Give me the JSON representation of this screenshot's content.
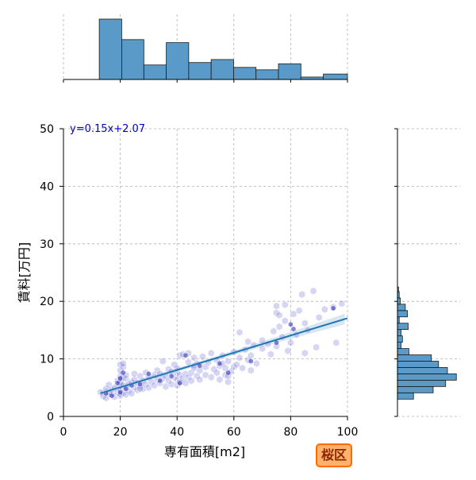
{
  "chart_data": {
    "type": "scatter",
    "xlabel": "専有面積[m2]",
    "ylabel": "賃料[万円]",
    "xlim": [
      0,
      100
    ],
    "ylim": [
      0,
      50
    ],
    "x_ticks": [
      0,
      20,
      40,
      60,
      80,
      100
    ],
    "y_ticks": [
      0,
      10,
      20,
      30,
      40,
      50
    ],
    "grid": true,
    "regression": {
      "label": "y=0.15x+2.07",
      "slope": 0.15,
      "intercept": 2.07,
      "x_range": [
        13,
        100
      ]
    },
    "points": [
      [
        13,
        4.2
      ],
      [
        14,
        3.5
      ],
      [
        15,
        3.2
      ],
      [
        15,
        4.8
      ],
      [
        16,
        4.0
      ],
      [
        16,
        5.5
      ],
      [
        17,
        3.8
      ],
      [
        17,
        4.6
      ],
      [
        18,
        3.4
      ],
      [
        18,
        5.0
      ],
      [
        19,
        4.2
      ],
      [
        19,
        6.2
      ],
      [
        20,
        3.6
      ],
      [
        20,
        4.5
      ],
      [
        20,
        5.2
      ],
      [
        20,
        6.0
      ],
      [
        20,
        7.0
      ],
      [
        20,
        8.0
      ],
      [
        20,
        9.0
      ],
      [
        20,
        3.9
      ],
      [
        20,
        5.8
      ],
      [
        20,
        6.6
      ],
      [
        21,
        4.1
      ],
      [
        21,
        5.4
      ],
      [
        21,
        6.8
      ],
      [
        21,
        8.6
      ],
      [
        21,
        9.2
      ],
      [
        22,
        3.8
      ],
      [
        22,
        5.0
      ],
      [
        22,
        6.5
      ],
      [
        22,
        7.2
      ],
      [
        23,
        4.4
      ],
      [
        23,
        5.6
      ],
      [
        24,
        4.0
      ],
      [
        24,
        6.0
      ],
      [
        25,
        5.0
      ],
      [
        25,
        6.4
      ],
      [
        25,
        7.4
      ],
      [
        26,
        4.6
      ],
      [
        26,
        5.8
      ],
      [
        27,
        5.2
      ],
      [
        27,
        7.0
      ],
      [
        28,
        4.8
      ],
      [
        28,
        6.2
      ],
      [
        29,
        5.6
      ],
      [
        29,
        7.6
      ],
      [
        30,
        5.0
      ],
      [
        30,
        6.8
      ],
      [
        31,
        6.0
      ],
      [
        32,
        5.4
      ],
      [
        32,
        7.2
      ],
      [
        33,
        6.4
      ],
      [
        33,
        8.0
      ],
      [
        34,
        5.8
      ],
      [
        34,
        7.4
      ],
      [
        35,
        6.6
      ],
      [
        35,
        9.6
      ],
      [
        36,
        5.2
      ],
      [
        36,
        7.0
      ],
      [
        37,
        6.2
      ],
      [
        37,
        8.2
      ],
      [
        38,
        5.6
      ],
      [
        38,
        7.8
      ],
      [
        39,
        6.8
      ],
      [
        39,
        9.0
      ],
      [
        40,
        5.4
      ],
      [
        40,
        6.4
      ],
      [
        40,
        7.6
      ],
      [
        40,
        8.4
      ],
      [
        41,
        6.0
      ],
      [
        41,
        7.2
      ],
      [
        41,
        10.6
      ],
      [
        42,
        6.6
      ],
      [
        42,
        10.8
      ],
      [
        43,
        5.8
      ],
      [
        43,
        7.4
      ],
      [
        44,
        6.8
      ],
      [
        44,
        9.4
      ],
      [
        44,
        11.0
      ],
      [
        45,
        7.6
      ],
      [
        45,
        6.2
      ],
      [
        46,
        8.8
      ],
      [
        46,
        10.2
      ],
      [
        47,
        7.0
      ],
      [
        47,
        9.2
      ],
      [
        48,
        6.4
      ],
      [
        48,
        8.0
      ],
      [
        49,
        10.4
      ],
      [
        50,
        7.2
      ],
      [
        50,
        8.6
      ],
      [
        51,
        9.4
      ],
      [
        52,
        6.8
      ],
      [
        52,
        11.0
      ],
      [
        53,
        8.2
      ],
      [
        54,
        7.6
      ],
      [
        54,
        9.8
      ],
      [
        55,
        6.4
      ],
      [
        55,
        8.8
      ],
      [
        56,
        9.2
      ],
      [
        56,
        10.6
      ],
      [
        57,
        7.2
      ],
      [
        57,
        8.4
      ],
      [
        58,
        6.0
      ],
      [
        58,
        9.6
      ],
      [
        59,
        7.8
      ],
      [
        60,
        8.6
      ],
      [
        60,
        11.2
      ],
      [
        61,
        9.0
      ],
      [
        62,
        14.6
      ],
      [
        62,
        10.2
      ],
      [
        63,
        8.4
      ],
      [
        64,
        11.6
      ],
      [
        65,
        9.8
      ],
      [
        65,
        13.0
      ],
      [
        66,
        8.0
      ],
      [
        66,
        10.6
      ],
      [
        67,
        12.4
      ],
      [
        68,
        9.2
      ],
      [
        70,
        13.2
      ],
      [
        70,
        11.8
      ],
      [
        72,
        12.6
      ],
      [
        73,
        10.8
      ],
      [
        74,
        14.8
      ],
      [
        75,
        19.2
      ],
      [
        75,
        18.0
      ],
      [
        75,
        12.2
      ],
      [
        76,
        17.6
      ],
      [
        76,
        15.6
      ],
      [
        77,
        13.8
      ],
      [
        78,
        16.6
      ],
      [
        78,
        19.4
      ],
      [
        79,
        11.4
      ],
      [
        80,
        12.8
      ],
      [
        81,
        17.8
      ],
      [
        82,
        14.2
      ],
      [
        83,
        18.4
      ],
      [
        84,
        21.2
      ],
      [
        85,
        16.2
      ],
      [
        86,
        15.0
      ],
      [
        88,
        21.8
      ],
      [
        89,
        12.0
      ],
      [
        90,
        17.2
      ],
      [
        92,
        18.6
      ],
      [
        95,
        19.0
      ],
      [
        96,
        12.8
      ],
      [
        98,
        19.6
      ],
      [
        85,
        11.0
      ],
      [
        58,
        7.0
      ],
      [
        46,
        8.4
      ],
      [
        27,
        4.8
      ]
    ],
    "dark_points": [
      [
        15,
        4.0
      ],
      [
        17,
        3.6
      ],
      [
        19,
        5.8
      ],
      [
        20,
        4.2
      ],
      [
        20,
        6.6
      ],
      [
        21,
        7.6
      ],
      [
        22,
        4.8
      ],
      [
        24,
        5.4
      ],
      [
        27,
        5.6
      ],
      [
        30,
        7.4
      ],
      [
        34,
        6.2
      ],
      [
        38,
        7.0
      ],
      [
        41,
        5.8
      ],
      [
        43,
        10.6
      ],
      [
        48,
        8.8
      ],
      [
        55,
        9.2
      ],
      [
        58,
        7.6
      ],
      [
        66,
        9.6
      ],
      [
        75,
        12.8
      ],
      [
        80,
        16.0
      ],
      [
        81,
        15.2
      ],
      [
        95,
        18.8
      ]
    ],
    "x_hist": [
      {
        "x0": 12.6,
        "x1": 20.5,
        "height": 1.0
      },
      {
        "x0": 20.5,
        "x1": 28.3,
        "height": 0.66
      },
      {
        "x0": 28.3,
        "x1": 36.2,
        "height": 0.24
      },
      {
        "x0": 36.2,
        "x1": 44.1,
        "height": 0.61
      },
      {
        "x0": 44.1,
        "x1": 52.0,
        "height": 0.28
      },
      {
        "x0": 52.0,
        "x1": 59.9,
        "height": 0.33
      },
      {
        "x0": 59.9,
        "x1": 67.8,
        "height": 0.2
      },
      {
        "x0": 67.8,
        "x1": 75.7,
        "height": 0.16
      },
      {
        "x0": 75.7,
        "x1": 83.6,
        "height": 0.26
      },
      {
        "x0": 83.6,
        "x1": 91.5,
        "height": 0.04
      },
      {
        "x0": 91.5,
        "x1": 100.0,
        "height": 0.09
      }
    ],
    "y_hist": [
      {
        "y0": 3.0,
        "y1": 4.1,
        "count": 0.45
      },
      {
        "y0": 4.1,
        "y1": 5.2,
        "count": 1.0
      },
      {
        "y0": 5.2,
        "y1": 6.3,
        "count": 1.35
      },
      {
        "y0": 6.3,
        "y1": 7.4,
        "count": 1.65
      },
      {
        "y0": 7.4,
        "y1": 8.5,
        "count": 1.4
      },
      {
        "y0": 8.5,
        "y1": 9.6,
        "count": 1.15
      },
      {
        "y0": 9.6,
        "y1": 10.7,
        "count": 0.95
      },
      {
        "y0": 10.7,
        "y1": 11.8,
        "count": 0.32
      },
      {
        "y0": 11.8,
        "y1": 12.9,
        "count": 0.1
      },
      {
        "y0": 12.9,
        "y1": 14.0,
        "count": 0.14
      },
      {
        "y0": 14.0,
        "y1": 15.1,
        "count": 0.1
      },
      {
        "y0": 15.1,
        "y1": 16.2,
        "count": 0.3
      },
      {
        "y0": 16.2,
        "y1": 17.3,
        "count": 0.05
      },
      {
        "y0": 17.3,
        "y1": 18.4,
        "count": 0.28
      },
      {
        "y0": 18.4,
        "y1": 19.5,
        "count": 0.22
      },
      {
        "y0": 19.5,
        "y1": 20.6,
        "count": 0.08
      },
      {
        "y0": 20.6,
        "y1": 21.7,
        "count": 0.05
      },
      {
        "y0": 21.7,
        "y1": 22.5,
        "count": 0.03
      }
    ],
    "badge": "桜区"
  }
}
